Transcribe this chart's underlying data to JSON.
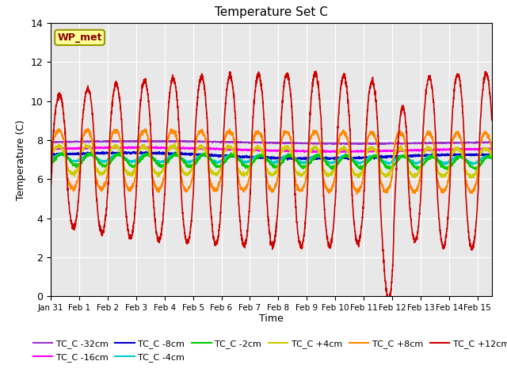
{
  "title": "Temperature Set C",
  "xlabel": "Time",
  "ylabel": "Temperature (C)",
  "ylim": [
    0,
    14
  ],
  "xlim_days": 15.5,
  "background_color": "#e8e8e8",
  "colors": {
    "TC_C -32cm": "#9933cc",
    "TC_C -16cm": "#ff00ff",
    "TC_C -8cm": "#0000cc",
    "TC_C -4cm": "#00cccc",
    "TC_C -2cm": "#00cc00",
    "TC_C +4cm": "#cccc00",
    "TC_C +8cm": "#ff8800",
    "TC_C +12cm": "#cc0000"
  },
  "legend_box_color": "#ffff99",
  "legend_box_edge": "#999900",
  "wp_met_label": "WP_met",
  "xtick_labels": [
    "Jan 31",
    "Feb 1",
    "Feb 2",
    "Feb 3",
    "Feb 4",
    "Feb 5",
    "Feb 6",
    "Feb 7",
    "Feb 8",
    "Feb 9",
    "Feb 10",
    "Feb 11",
    "Feb 12",
    "Feb 13",
    "Feb 14",
    "Feb 15"
  ],
  "ytick_labels": [
    "0",
    "2",
    "4",
    "6",
    "8",
    "10",
    "12",
    "14"
  ]
}
